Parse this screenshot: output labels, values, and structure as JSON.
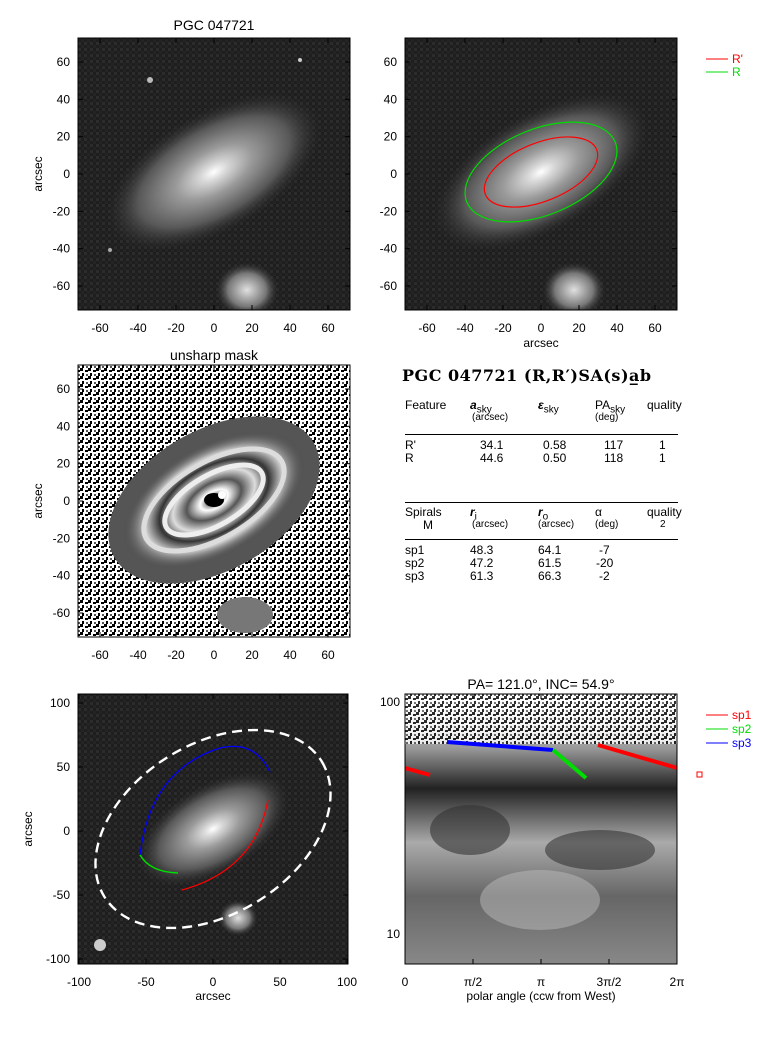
{
  "panels": {
    "p1": {
      "title": "PGC 047721",
      "ylabel": "arcsec",
      "xlabel": "",
      "xticks": [
        "-60",
        "-40",
        "-20",
        "0",
        "20",
        "40",
        "60"
      ],
      "yticks": [
        "60",
        "40",
        "20",
        "0",
        "-20",
        "-40",
        "-60"
      ]
    },
    "p2": {
      "title": "",
      "ylabel": "",
      "xlabel": "arcsec",
      "xticks": [
        "-60",
        "-40",
        "-20",
        "0",
        "20",
        "40",
        "60"
      ],
      "yticks": [
        "60",
        "40",
        "20",
        "0",
        "-20",
        "-40",
        "-60"
      ]
    },
    "p3": {
      "title": "unsharp mask",
      "ylabel": "arcsec",
      "xlabel": "",
      "xticks": [
        "-60",
        "-40",
        "-20",
        "0",
        "20",
        "40",
        "60"
      ],
      "yticks": [
        "60",
        "40",
        "20",
        "0",
        "-20",
        "-40",
        "-60"
      ]
    },
    "p5": {
      "title": "",
      "ylabel": "arcsec",
      "xlabel": "arcsec",
      "xticks": [
        "-100",
        "-50",
        "0",
        "50",
        "100"
      ],
      "yticks": [
        "100",
        "50",
        "0",
        "-50",
        "-100"
      ]
    },
    "p6": {
      "title": "PA= 121.0°, INC=  54.9°",
      "xlabel": "polar angle (ccw from West)",
      "xticks": [
        "0",
        "π/2",
        "π",
        "3π/2",
        "2π"
      ],
      "yticks": [
        "100",
        "10"
      ]
    }
  },
  "legend_top": [
    {
      "label": "R'",
      "color": "#ff0000"
    },
    {
      "label": "R",
      "color": "#00dd00"
    }
  ],
  "legend_bottom": [
    {
      "label": "sp1",
      "color": "#ff0000"
    },
    {
      "label": "sp2",
      "color": "#00dd00"
    },
    {
      "label": "sp3",
      "color": "#0000ff"
    }
  ],
  "table": {
    "heading": "PGC 047721  (R,R′)SA(s)a̲b",
    "features_header": {
      "c1": "Feature",
      "c2": "a",
      "c2sub": "sky",
      "c2unit": "(arcsec)",
      "c3": "ε",
      "c3sub": "sky",
      "c4": "PA",
      "c4sub": "sky",
      "c4unit": "(deg)",
      "c5": "quality"
    },
    "features": [
      {
        "name": "R'",
        "a": "34.1",
        "e": "0.58",
        "pa": "117",
        "q": "1"
      },
      {
        "name": "R",
        "a": "44.6",
        "e": "0.50",
        "pa": "118",
        "q": "1"
      }
    ],
    "spirals_header": {
      "c1": "Spirals",
      "c1b": "M",
      "c2": "r",
      "c2sub": "i",
      "c2unit": "(arcsec)",
      "c3": "r",
      "c3sub": "o",
      "c3unit": "(arcsec)",
      "c4": "α",
      "c4unit": "(deg)",
      "c5": "quality",
      "c5b": "2"
    },
    "spirals": [
      {
        "name": "sp1",
        "ri": "48.3",
        "ro": "64.1",
        "alpha": "-7"
      },
      {
        "name": "sp2",
        "ri": "47.2",
        "ro": "61.5",
        "alpha": "-20"
      },
      {
        "name": "sp3",
        "ri": "61.3",
        "ro": "66.3",
        "alpha": "-2"
      }
    ]
  },
  "colors": {
    "red": "#ff0000",
    "green": "#00dd00",
    "blue": "#0000ff"
  }
}
